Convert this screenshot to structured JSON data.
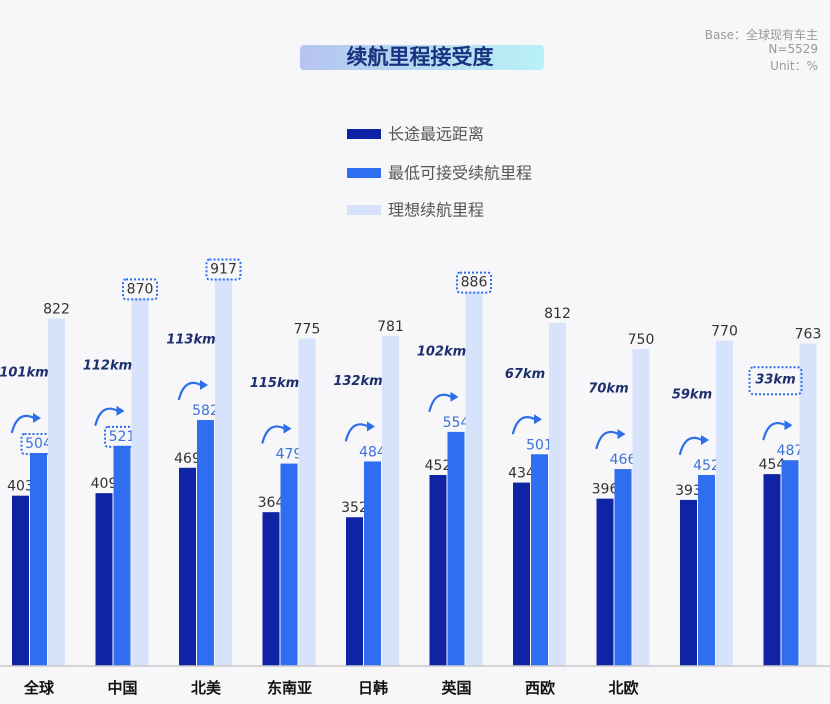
{
  "chart_data": {
    "type": "bar",
    "title": "续航里程接受度",
    "notes": [
      "Base：全球现有车主",
      "N=5529",
      "Unit：%"
    ],
    "categories": [
      "全球",
      "中国",
      "北美",
      "东南亚",
      "日韩",
      "英国",
      "西欧",
      "北欧",
      "",
      ""
    ],
    "series": [
      {
        "name": "长途最远距离",
        "values": [
          403,
          409,
          469,
          364,
          352,
          452,
          434,
          396,
          393,
          454
        ]
      },
      {
        "name": "最低可接受续航里程",
        "values": [
          504,
          521,
          582,
          479,
          484,
          554,
          501,
          466,
          452,
          487
        ]
      },
      {
        "name": "理想续航里程",
        "values": [
          822,
          870,
          917,
          775,
          781,
          886,
          812,
          750,
          770,
          763
        ]
      }
    ],
    "gap_labels": [
      "101km",
      "112km",
      "113km",
      "115km",
      "132km",
      "102km",
      "67km",
      "70km",
      "59km",
      "33km"
    ],
    "highlighted": {
      "最低可接受续航里程": [
        "全球",
        "中国"
      ],
      "理想续航里程": [
        "中国",
        "北美",
        "英国"
      ]
    },
    "ylim": [
      0,
      1000
    ],
    "grid": false,
    "legend_position": "top-center"
  },
  "colors": {
    "series": [
      "#0f23a5",
      "#2f6ef0",
      "#d7e3fb"
    ],
    "value_labels": [
      "#333333",
      "#3b72d8",
      "#333333"
    ],
    "arrow": "#2d6fe8",
    "highlight_box": "#2d6fe8",
    "title_gradient": [
      "#b5c4ef",
      "#b8f1f6"
    ]
  },
  "icons": [
    "curved-arrow-icon"
  ]
}
